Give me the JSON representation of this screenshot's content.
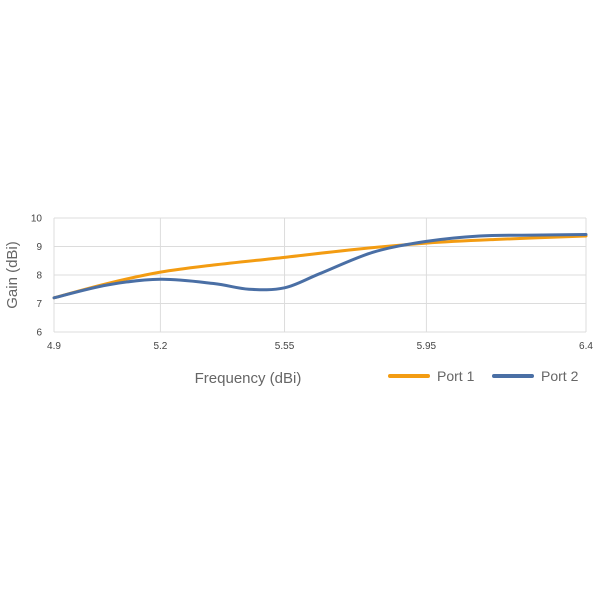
{
  "chart_data": {
    "type": "line",
    "title": "",
    "xlabel": "Frequency (dBi)",
    "ylabel": "Gain (dBi)",
    "xlim": [
      4.9,
      6.4
    ],
    "ylim": [
      6,
      10
    ],
    "x_ticks": [
      "4.9",
      "5.2",
      "5.55",
      "5.95",
      "6.4"
    ],
    "y_ticks": [
      "6",
      "7",
      "8",
      "9",
      "10"
    ],
    "grid": true,
    "legend_position": "bottom-right",
    "series": [
      {
        "name": "Port 1",
        "color": "#F39C12",
        "x": [
          4.9,
          5.05,
          5.2,
          5.35,
          5.55,
          5.75,
          5.95,
          6.15,
          6.4
        ],
        "y": [
          7.2,
          7.7,
          8.1,
          8.35,
          8.62,
          8.9,
          9.12,
          9.25,
          9.37
        ]
      },
      {
        "name": "Port 2",
        "color": "#4A6FA5",
        "x": [
          4.9,
          5.05,
          5.2,
          5.35,
          5.45,
          5.55,
          5.65,
          5.8,
          5.95,
          6.1,
          6.25,
          6.4
        ],
        "y": [
          7.2,
          7.65,
          7.85,
          7.7,
          7.5,
          7.55,
          8.05,
          8.8,
          9.18,
          9.37,
          9.4,
          9.42
        ]
      }
    ]
  }
}
